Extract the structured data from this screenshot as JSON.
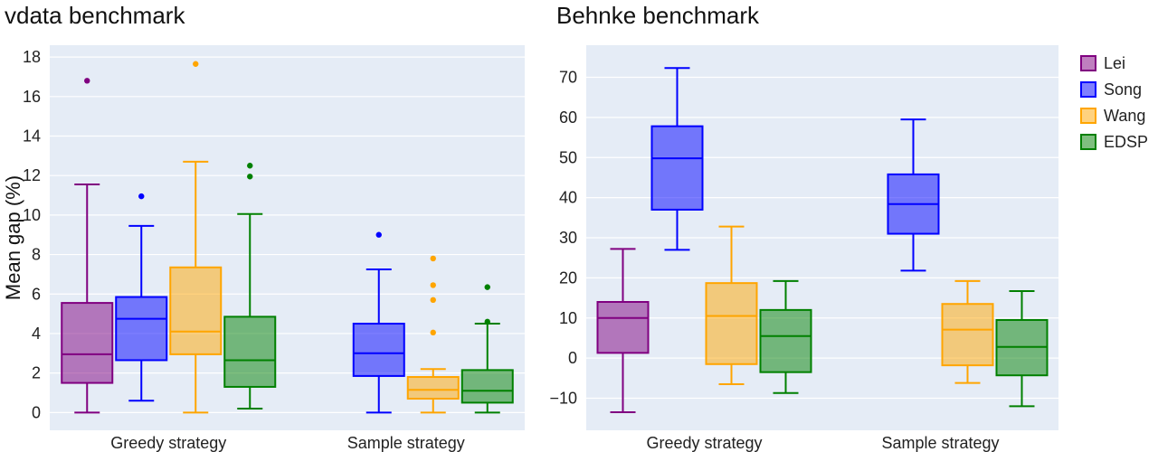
{
  "chart_data": [
    {
      "type": "box",
      "title": "vdata benchmark",
      "xlabel": "",
      "ylabel": "Mean gap (%)",
      "ylim": [
        -0.9,
        18.6
      ],
      "yticks": [
        0,
        2,
        4,
        6,
        8,
        10,
        12,
        14,
        16,
        18
      ],
      "categories": [
        "Greedy strategy",
        "Sample strategy"
      ],
      "series": [
        {
          "name": "Lei",
          "boxes": [
            {
              "category": "Greedy strategy",
              "min": 0,
              "q1": 1.5,
              "median": 2.95,
              "q3": 5.55,
              "max": 11.55,
              "outliers": [
                16.8
              ]
            },
            null
          ]
        },
        {
          "name": "Song",
          "boxes": [
            {
              "category": "Greedy strategy",
              "min": 0.6,
              "q1": 2.65,
              "median": 4.75,
              "q3": 5.85,
              "max": 9.45,
              "outliers": [
                10.95
              ]
            },
            {
              "category": "Sample strategy",
              "min": 0,
              "q1": 1.85,
              "median": 3.0,
              "q3": 4.5,
              "max": 7.25,
              "outliers": [
                9.0
              ]
            }
          ]
        },
        {
          "name": "Wang",
          "boxes": [
            {
              "category": "Greedy strategy",
              "min": 0,
              "q1": 2.95,
              "median": 4.1,
              "q3": 7.35,
              "max": 12.7,
              "outliers": [
                17.65
              ]
            },
            {
              "category": "Sample strategy",
              "min": 0,
              "q1": 0.7,
              "median": 1.15,
              "q3": 1.8,
              "max": 2.2,
              "outliers": [
                4.05,
                5.7,
                6.45,
                7.8
              ]
            }
          ]
        },
        {
          "name": "EDSP",
          "boxes": [
            {
              "category": "Greedy strategy",
              "min": 0.2,
              "q1": 1.3,
              "median": 2.65,
              "q3": 4.85,
              "max": 10.05,
              "outliers": [
                11.95,
                12.5
              ]
            },
            {
              "category": "Sample strategy",
              "min": 0,
              "q1": 0.5,
              "median": 1.1,
              "q3": 2.15,
              "max": 4.5,
              "outliers": [
                4.6,
                6.35
              ]
            }
          ]
        }
      ]
    },
    {
      "type": "box",
      "title": "Behnke benchmark",
      "xlabel": "",
      "ylabel": "",
      "ylim": [
        -18,
        78
      ],
      "yticks": [
        -10,
        0,
        10,
        20,
        30,
        40,
        50,
        60,
        70
      ],
      "categories": [
        "Greedy strategy",
        "Sample strategy"
      ],
      "series": [
        {
          "name": "Lei",
          "boxes": [
            {
              "category": "Greedy strategy",
              "min": -13.5,
              "q1": 1.3,
              "median": 10,
              "q3": 14,
              "max": 27.2,
              "outliers": []
            },
            null
          ]
        },
        {
          "name": "Song",
          "boxes": [
            {
              "category": "Greedy strategy",
              "min": 27,
              "q1": 37,
              "median": 49.8,
              "q3": 57.8,
              "max": 72.3,
              "outliers": []
            },
            {
              "category": "Sample strategy",
              "min": 21.8,
              "q1": 31,
              "median": 38.4,
              "q3": 45.8,
              "max": 59.5,
              "outliers": []
            }
          ]
        },
        {
          "name": "Wang",
          "boxes": [
            {
              "category": "Greedy strategy",
              "min": -6.5,
              "q1": -1.5,
              "median": 10.5,
              "q3": 18.7,
              "max": 32.8,
              "outliers": []
            },
            {
              "category": "Sample strategy",
              "min": -6.2,
              "q1": -1.8,
              "median": 7.1,
              "q3": 13.5,
              "max": 19.2,
              "outliers": []
            }
          ]
        },
        {
          "name": "EDSP",
          "boxes": [
            {
              "category": "Greedy strategy",
              "min": -8.7,
              "q1": -3.5,
              "median": 5.5,
              "q3": 12,
              "max": 19.2,
              "outliers": []
            },
            {
              "category": "Sample strategy",
              "min": -12,
              "q1": -4.3,
              "median": 2.8,
              "q3": 9.5,
              "max": 16.7,
              "outliers": []
            }
          ]
        }
      ]
    }
  ],
  "legend": {
    "placement": "right",
    "items": [
      {
        "name": "Lei",
        "color": "#800080"
      },
      {
        "name": "Song",
        "color": "#0000ff"
      },
      {
        "name": "Wang",
        "color": "#ffa500"
      },
      {
        "name": "EDSP",
        "color": "#008000"
      }
    ]
  },
  "style": {
    "plot_bg": "#e5ecf6",
    "grid_color": "#ffffff"
  }
}
